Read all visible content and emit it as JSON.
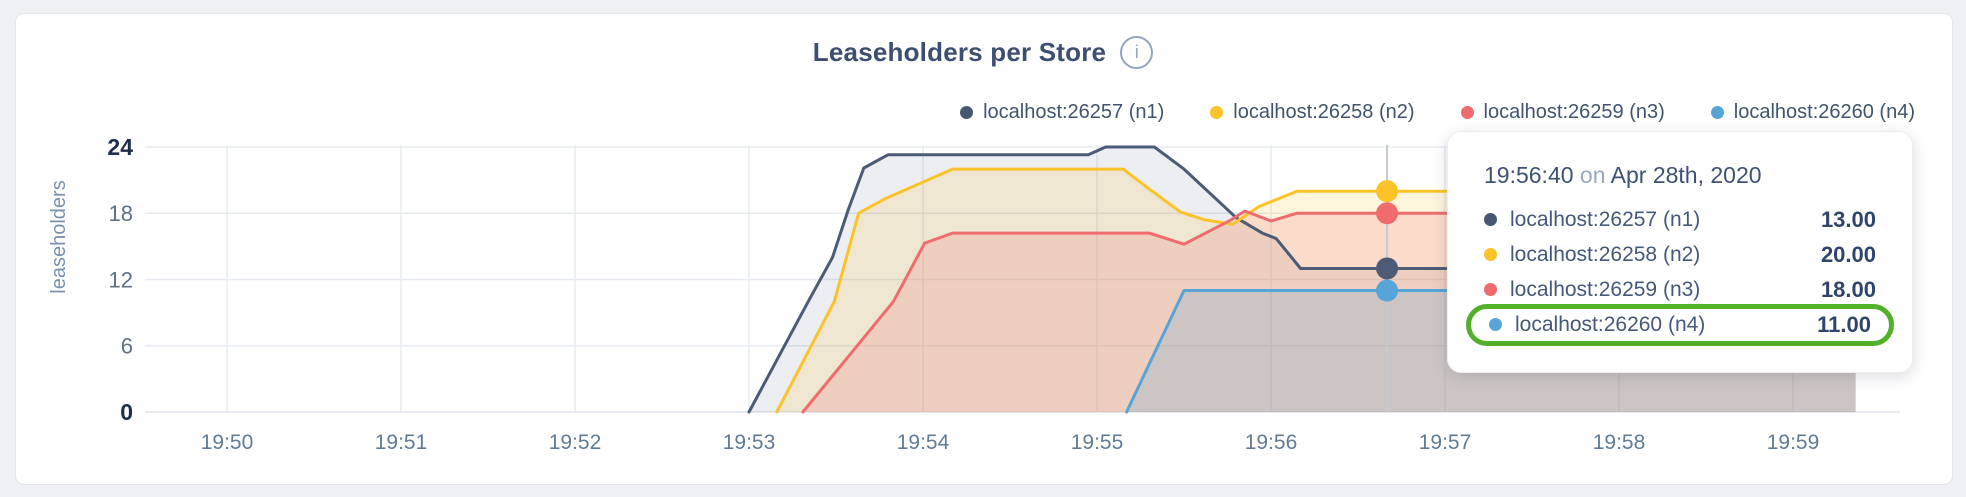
{
  "header": {
    "title": "Leaseholders per Store",
    "info_icon": "i"
  },
  "legend": {
    "items": [
      {
        "label": "localhost:26257 (n1)",
        "color": "#475873"
      },
      {
        "label": "localhost:26258 (n2)",
        "color": "#fbc32a"
      },
      {
        "label": "localhost:26259 (n3)",
        "color": "#ef6b6e"
      },
      {
        "label": "localhost:26260 (n4)",
        "color": "#57a5d8"
      }
    ]
  },
  "tooltip": {
    "time": "19:56:40",
    "conjunction": "on",
    "date": "Apr 28th, 2020",
    "rows": [
      {
        "label": "localhost:26257 (n1)",
        "value": "13.00",
        "color": "#475873",
        "highlighted": false
      },
      {
        "label": "localhost:26258 (n2)",
        "value": "20.00",
        "color": "#fbc32a",
        "highlighted": false
      },
      {
        "label": "localhost:26259 (n3)",
        "value": "18.00",
        "color": "#ef6b6e",
        "highlighted": false
      },
      {
        "label": "localhost:26260 (n4)",
        "value": "11.00",
        "color": "#57a5d8",
        "highlighted": true
      }
    ],
    "highlight_color": "#53b02a"
  },
  "chart_data": {
    "type": "area",
    "title": "Leaseholders per Store",
    "ylabel": "leaseholders",
    "xlabel": "",
    "x_ticks": [
      "19:50",
      "19:51",
      "19:52",
      "19:53",
      "19:54",
      "19:55",
      "19:56",
      "19:57",
      "19:58",
      "19:59"
    ],
    "x_tick_minutes": [
      50,
      51,
      52,
      53,
      54,
      55,
      56,
      57,
      58,
      59
    ],
    "y_ticks": [
      0,
      6,
      12,
      18,
      24
    ],
    "ylim": [
      0,
      24
    ],
    "grid": true,
    "legend_position": "top",
    "x_end_minute": 59.36,
    "series": [
      {
        "name": "localhost:26257 (n1)",
        "color": "#4c5b76",
        "fill": "rgba(71,88,115,0.10)",
        "points": [
          [
            53.0,
            0
          ],
          [
            53.34,
            10
          ],
          [
            53.48,
            14
          ],
          [
            53.57,
            18.3
          ],
          [
            53.66,
            22.1
          ],
          [
            53.8,
            23.3
          ],
          [
            54.95,
            23.3
          ],
          [
            55.05,
            24
          ],
          [
            55.33,
            24
          ],
          [
            55.5,
            22
          ],
          [
            55.8,
            17.6
          ],
          [
            55.95,
            16.2
          ],
          [
            56.03,
            15.7
          ],
          [
            56.17,
            13
          ],
          [
            59.36,
            13
          ]
        ]
      },
      {
        "name": "localhost:26258 (n2)",
        "color": "#fbc32a",
        "fill": "rgba(251,195,42,0.16)",
        "points": [
          [
            53.16,
            0
          ],
          [
            53.49,
            10
          ],
          [
            53.63,
            18
          ],
          [
            53.78,
            19.3
          ],
          [
            54.17,
            22
          ],
          [
            55.15,
            22
          ],
          [
            55.3,
            20.2
          ],
          [
            55.48,
            18.1
          ],
          [
            55.62,
            17.4
          ],
          [
            55.78,
            17.0
          ],
          [
            55.93,
            18.6
          ],
          [
            56.15,
            20
          ],
          [
            59.36,
            20
          ]
        ]
      },
      {
        "name": "localhost:26259 (n3)",
        "color": "#ef6b6e",
        "fill": "rgba(239,107,110,0.18)",
        "points": [
          [
            53.31,
            0
          ],
          [
            53.83,
            10
          ],
          [
            54.01,
            15.3
          ],
          [
            54.17,
            16.2
          ],
          [
            55.3,
            16.2
          ],
          [
            55.5,
            15.2
          ],
          [
            55.77,
            17.4
          ],
          [
            55.85,
            18.2
          ],
          [
            56.0,
            17.3
          ],
          [
            56.15,
            18
          ],
          [
            59.36,
            18
          ]
        ]
      },
      {
        "name": "localhost:26260 (n4)",
        "color": "#57a5d8",
        "fill": "rgba(87,165,216,0.22)",
        "points": [
          [
            55.17,
            0
          ],
          [
            55.5,
            11
          ],
          [
            59.36,
            11
          ]
        ]
      }
    ],
    "hover": {
      "x_minute": 56.667,
      "time_label": "19:56:40",
      "values": [
        13,
        20,
        18,
        11
      ]
    }
  }
}
